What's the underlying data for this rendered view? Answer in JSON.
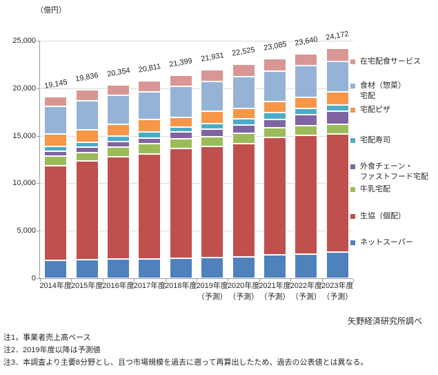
{
  "unit_label": "（億円）",
  "source": "矢野経済研究所調べ",
  "notes": [
    "注1，事業者売上高ベース",
    "注2．2019年度以降は予測値",
    "注3．本調査より主要8分野とし、且つ市場規模を過去に遡って再算出したため、過去の公表値とは異なる。"
  ],
  "chart_data": {
    "type": "bar",
    "stacked": true,
    "unit": "億円",
    "title": "",
    "xlabel": "",
    "ylabel": "（億円）",
    "ylim": [
      0,
      25000
    ],
    "grid": true,
    "legend_position": "right",
    "categories": [
      "2014年度",
      "2015年度",
      "2016年度",
      "2017年度",
      "2018年度",
      "2019年度",
      "2020年度",
      "2021年度",
      "2022年度",
      "2023年度"
    ],
    "category_sublabels": [
      "",
      "",
      "",
      "",
      "",
      "（予測）",
      "（予測）",
      "（予測）",
      "（予測）",
      "（予測）"
    ],
    "y_ticks": [
      "0",
      "5,000",
      "10,000",
      "15,000",
      "20,000",
      "25,000"
    ],
    "totals": [
      19145,
      19836,
      20354,
      20811,
      21399,
      21931,
      22525,
      23085,
      23640,
      24172
    ],
    "total_labels": [
      "19,145",
      "19,836",
      "20,354",
      "20,811",
      "21,399",
      "21,931",
      "22,525",
      "23,085",
      "23,640",
      "24,172"
    ],
    "series": [
      {
        "name": "ネットスーパー",
        "color": "#4F81BD",
        "values": [
          1900,
          1950,
          2000,
          2060,
          2130,
          2200,
          2280,
          2450,
          2570,
          2740
        ]
      },
      {
        "name": "生協（個配）",
        "color": "#C0504D",
        "values": [
          9945,
          10380,
          10815,
          11045,
          11535,
          11660,
          11915,
          12350,
          12470,
          12480
        ]
      },
      {
        "name": "牛乳宅配",
        "color": "#9BBB59",
        "values": [
          1020,
          920,
          1015,
          1045,
          1015,
          1015,
          1045,
          1020,
          1045,
          985
        ]
      },
      {
        "name": "外食チェーン・ファストフード宅配",
        "color": "#8064A2",
        "values": [
          485,
          535,
          560,
          605,
          725,
          845,
          895,
          920,
          1135,
          1410
        ]
      },
      {
        "name": "宅配寿司",
        "color": "#4BACC6",
        "values": [
          555,
          535,
          605,
          675,
          485,
          560,
          630,
          725,
          635,
          650
        ]
      },
      {
        "name": "宅配ピザ",
        "color": "#F79646",
        "values": [
          1260,
          1330,
          1210,
          1260,
          1045,
          1310,
          1135,
          1115,
          1205,
          1380
        ]
      },
      {
        "name": "食材（惣菜）宅配",
        "color": "#95B3D7",
        "values": [
          2905,
          3000,
          3030,
          2955,
          3270,
          3100,
          3320,
          3245,
          3325,
          3155
        ]
      },
      {
        "name": "在宅配食サービス",
        "color": "#D99694",
        "values": [
          1075,
          1186,
          1119,
          1166,
          1194,
          1241,
          1305,
          1260,
          1255,
          1372
        ]
      }
    ],
    "legend": [
      {
        "color": "#D99694",
        "label": "在宅配食サービス",
        "label_lines": [
          "在宅配食サービス"
        ]
      },
      {
        "color": "#95B3D7",
        "label": "食材（惣菜）宅配",
        "label_lines": [
          "食材（惣菜）",
          "宅配"
        ]
      },
      {
        "color": "#F79646",
        "label": "宅配ピザ",
        "label_lines": [
          "宅配ピザ"
        ]
      },
      {
        "color": "#4BACC6",
        "label": "宅配寿司",
        "label_lines": [
          "宅配寿司"
        ]
      },
      {
        "color": "#8064A2",
        "label": "外食チェーン・ファストフード宅配",
        "label_lines": [
          "外食チェーン・",
          "ファストフード宅配"
        ]
      },
      {
        "color": "#9BBB59",
        "label": "牛乳宅配",
        "label_lines": [
          "牛乳宅配"
        ]
      },
      {
        "color": "#C0504D",
        "label": "生協（個配）",
        "label_lines": [
          "生協（個配）"
        ]
      },
      {
        "color": "#4F81BD",
        "label": "ネットスーパー",
        "label_lines": [
          "ネットスーパー"
        ]
      }
    ]
  }
}
